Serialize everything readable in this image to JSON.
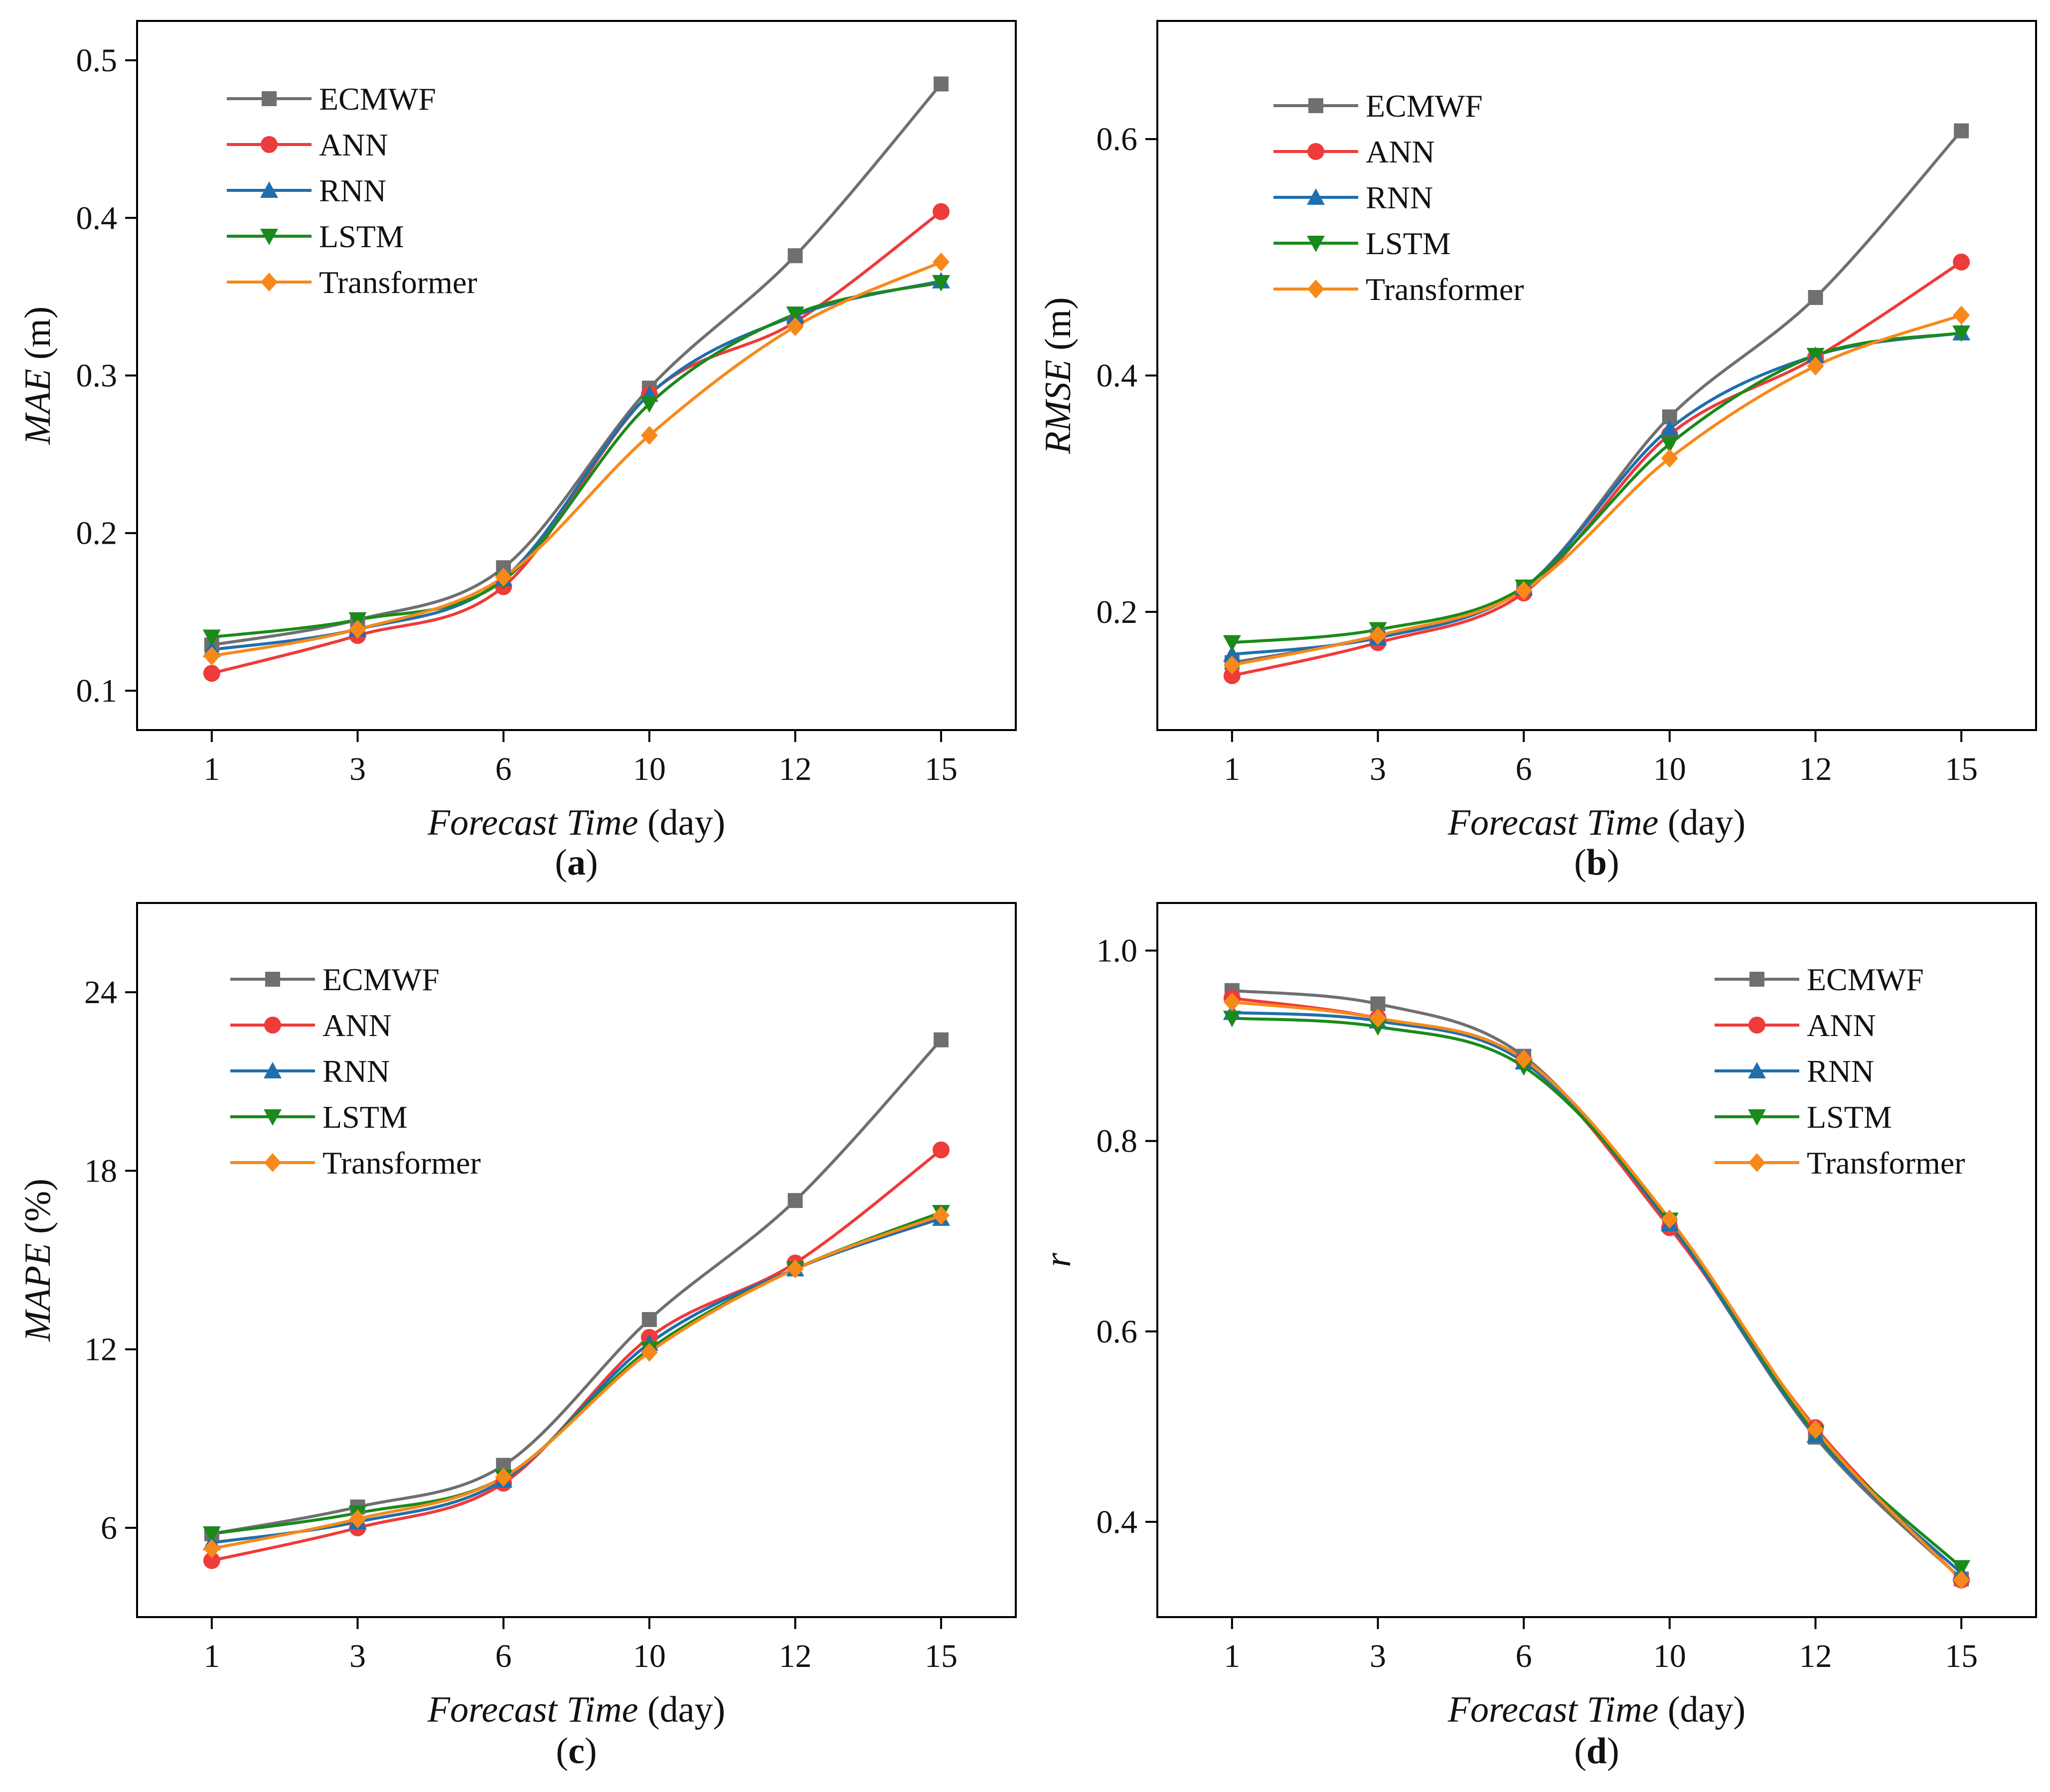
{
  "figure": {
    "series_styles": [
      {
        "name": "ECMWF",
        "color": "#6f6f6f",
        "marker": "square"
      },
      {
        "name": "ANN",
        "color": "#ee3b3b",
        "marker": "circle"
      },
      {
        "name": "RNN",
        "color": "#1f6fad",
        "marker": "triangle-up"
      },
      {
        "name": "LSTM",
        "color": "#1a8a1a",
        "marker": "triangle-down"
      },
      {
        "name": "Transformer",
        "color": "#f7891b",
        "marker": "diamond"
      }
    ]
  },
  "chart_data": [
    {
      "id": "a",
      "type": "line",
      "panel_label": "a",
      "xlabel": "Forecast Time",
      "xlabel_unit": "(day)",
      "ylabel": "MAE",
      "ylabel_unit": "(m)",
      "categories": [
        "1",
        "3",
        "6",
        "10",
        "12",
        "15"
      ],
      "ylim": [
        0.075,
        0.525
      ],
      "yticks": [
        "0.1",
        "0.2",
        "0.3",
        "0.4",
        "0.5"
      ],
      "ytick_values": [
        0.1,
        0.2,
        0.3,
        0.4,
        0.5
      ],
      "legend_position": "top-left",
      "series": [
        {
          "name": "ECMWF",
          "values": [
            0.129,
            0.145,
            0.178,
            0.292,
            0.376,
            0.485
          ]
        },
        {
          "name": "ANN",
          "values": [
            0.111,
            0.135,
            0.166,
            0.288,
            0.334,
            0.404
          ]
        },
        {
          "name": "RNN",
          "values": [
            0.126,
            0.139,
            0.171,
            0.288,
            0.338,
            0.36
          ]
        },
        {
          "name": "LSTM",
          "values": [
            0.134,
            0.145,
            0.17,
            0.282,
            0.339,
            0.359
          ]
        },
        {
          "name": "Transformer",
          "values": [
            0.122,
            0.139,
            0.172,
            0.262,
            0.331,
            0.372
          ]
        }
      ]
    },
    {
      "id": "b",
      "type": "line",
      "panel_label": "b",
      "xlabel": "Forecast Time",
      "xlabel_unit": "(day)",
      "ylabel": "RMSE",
      "ylabel_unit": "(m)",
      "categories": [
        "1",
        "3",
        "6",
        "10",
        "12",
        "15"
      ],
      "ylim": [
        0.1,
        0.7
      ],
      "yticks": [
        "0.2",
        "0.4",
        "0.6"
      ],
      "ytick_values": [
        0.2,
        0.4,
        0.6
      ],
      "legend_position": "top-left",
      "series": [
        {
          "name": "ECMWF",
          "values": [
            0.157,
            0.18,
            0.22,
            0.365,
            0.466,
            0.607
          ]
        },
        {
          "name": "ANN",
          "values": [
            0.146,
            0.174,
            0.216,
            0.35,
            0.415,
            0.496
          ]
        },
        {
          "name": "RNN",
          "values": [
            0.164,
            0.178,
            0.22,
            0.355,
            0.417,
            0.436
          ]
        },
        {
          "name": "LSTM",
          "values": [
            0.174,
            0.185,
            0.221,
            0.342,
            0.417,
            0.436
          ]
        },
        {
          "name": "Transformer",
          "values": [
            0.155,
            0.18,
            0.218,
            0.33,
            0.408,
            0.451
          ]
        }
      ]
    },
    {
      "id": "c",
      "type": "line",
      "panel_label": "c",
      "xlabel": "Forecast Time",
      "xlabel_unit": "(day)",
      "ylabel": "MAPE",
      "ylabel_unit": "(%)",
      "categories": [
        "1",
        "3",
        "6",
        "10",
        "12",
        "15"
      ],
      "ylim": [
        3.0,
        27.0
      ],
      "yticks": [
        "6",
        "12",
        "18",
        "24"
      ],
      "ytick_values": [
        6,
        12,
        18,
        24
      ],
      "legend_position": "top-left",
      "series": [
        {
          "name": "ECMWF",
          "values": [
            5.8,
            6.7,
            8.1,
            13.0,
            17.0,
            22.4
          ]
        },
        {
          "name": "ANN",
          "values": [
            4.9,
            6.0,
            7.5,
            12.4,
            14.9,
            18.7
          ]
        },
        {
          "name": "RNN",
          "values": [
            5.5,
            6.2,
            7.6,
            12.2,
            14.7,
            16.4
          ]
        },
        {
          "name": "LSTM",
          "values": [
            5.8,
            6.5,
            7.7,
            12.0,
            14.7,
            16.6
          ]
        },
        {
          "name": "Transformer",
          "values": [
            5.3,
            6.3,
            7.7,
            11.9,
            14.7,
            16.5
          ]
        }
      ]
    },
    {
      "id": "d",
      "type": "line",
      "panel_label": "d",
      "xlabel": "Forecast Time",
      "xlabel_unit": "(day)",
      "ylabel": "r",
      "ylabel_unit": "",
      "categories": [
        "1",
        "3",
        "6",
        "10",
        "12",
        "15"
      ],
      "ylim": [
        0.3,
        1.05
      ],
      "yticks": [
        "0.4",
        "0.6",
        "0.8",
        "1.0"
      ],
      "ytick_values": [
        0.4,
        0.6,
        0.8,
        1.0
      ],
      "legend_position": "top-right",
      "series": [
        {
          "name": "ECMWF",
          "values": [
            0.958,
            0.944,
            0.889,
            0.712,
            0.489,
            0.34
          ]
        },
        {
          "name": "ANN",
          "values": [
            0.95,
            0.929,
            0.884,
            0.709,
            0.499,
            0.339
          ]
        },
        {
          "name": "RNN",
          "values": [
            0.935,
            0.926,
            0.883,
            0.713,
            0.491,
            0.346
          ]
        },
        {
          "name": "LSTM",
          "values": [
            0.929,
            0.92,
            0.878,
            0.717,
            0.494,
            0.352
          ]
        },
        {
          "name": "Transformer",
          "values": [
            0.946,
            0.929,
            0.886,
            0.718,
            0.497,
            0.339
          ]
        }
      ]
    }
  ]
}
